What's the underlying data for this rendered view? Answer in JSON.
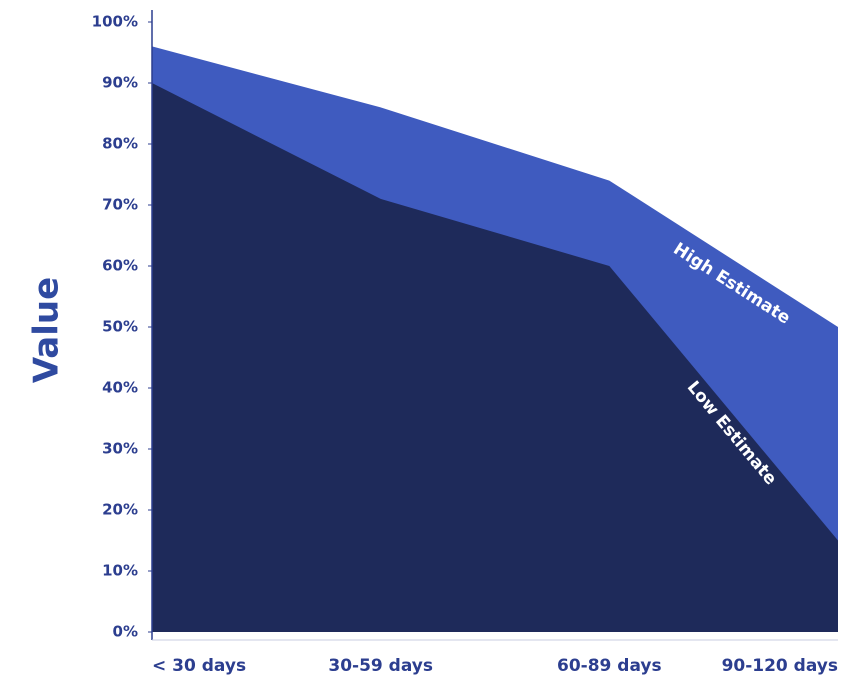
{
  "chart_data": {
    "type": "area",
    "y_label": "Value",
    "categories": [
      "< 30 days",
      "30-59 days",
      "60-89 days",
      "90-120 days"
    ],
    "series": [
      {
        "name": "High Estimate",
        "color": "#3f5bbf",
        "values": [
          96,
          86,
          74,
          50
        ]
      },
      {
        "name": "Low Estimate",
        "color": "#1e2a5a",
        "values": [
          90,
          71,
          60,
          15
        ]
      }
    ],
    "ylim": [
      0,
      100
    ],
    "yticks": [
      {
        "value": 0,
        "label": "0%"
      },
      {
        "value": 10,
        "label": "10%"
      },
      {
        "value": 20,
        "label": "20%"
      },
      {
        "value": 30,
        "label": "30%"
      },
      {
        "value": 40,
        "label": "40%"
      },
      {
        "value": 50,
        "label": "50%"
      },
      {
        "value": 60,
        "label": "60%"
      },
      {
        "value": 70,
        "label": "70%"
      },
      {
        "value": 80,
        "label": "80%"
      },
      {
        "value": 90,
        "label": "90%"
      },
      {
        "value": 100,
        "label": "100%"
      }
    ],
    "grid": false
  }
}
